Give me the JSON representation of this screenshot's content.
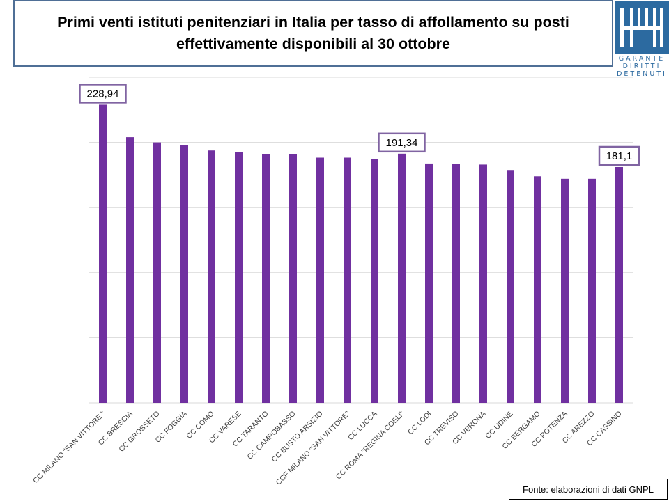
{
  "header": {
    "title_line1": "Primi venti istituti penitenziari in Italia per tasso di affollamento su posti",
    "title_line2": "effettivamente disponibili al 30 ottobre"
  },
  "logo": {
    "line1": "GARANTE",
    "line2": "DIRITTI",
    "line3": "DETENUTI",
    "color": "#2c6aa0"
  },
  "source": "Fonte: elaborazioni di dati GNPL",
  "chart_data": {
    "type": "bar",
    "categories": [
      "CC MILANO \"SAN VITTORE \"",
      "CC BRESCIA",
      "CC GROSSETO",
      "CC FOGGIA",
      "CC COMO",
      "CC VARESE",
      "CC TARANTO",
      "CC CAMPOBASSO",
      "CC BUSTO ARSIZIO",
      "CCF MILANO \"SAN VITTORE\"",
      "CC LUCCA",
      "CC ROMA \"REGINA COELI\"",
      "CC LODI",
      "CC TREVISO",
      "CC VERONA",
      "CC UDINE",
      "CC BERGAMO",
      "CC POTENZA",
      "CC AREZZO",
      "CC CASSINO"
    ],
    "values": [
      228.94,
      204.0,
      200.0,
      198.0,
      193.8,
      192.8,
      191.2,
      190.8,
      188.3,
      188.3,
      187.3,
      191.34,
      183.8,
      183.7,
      183.0,
      178.3,
      174.0,
      172.1,
      172.1,
      181.1
    ],
    "labeled": [
      {
        "index": 0,
        "label": "228,94"
      },
      {
        "index": 11,
        "label": "191,34"
      },
      {
        "index": 19,
        "label": "181,1"
      }
    ],
    "ylim": [
      0,
      250
    ],
    "grid": true,
    "bar_color": "#7030a0",
    "label_border_color": "#8064a2",
    "xlabel": "",
    "ylabel": ""
  }
}
